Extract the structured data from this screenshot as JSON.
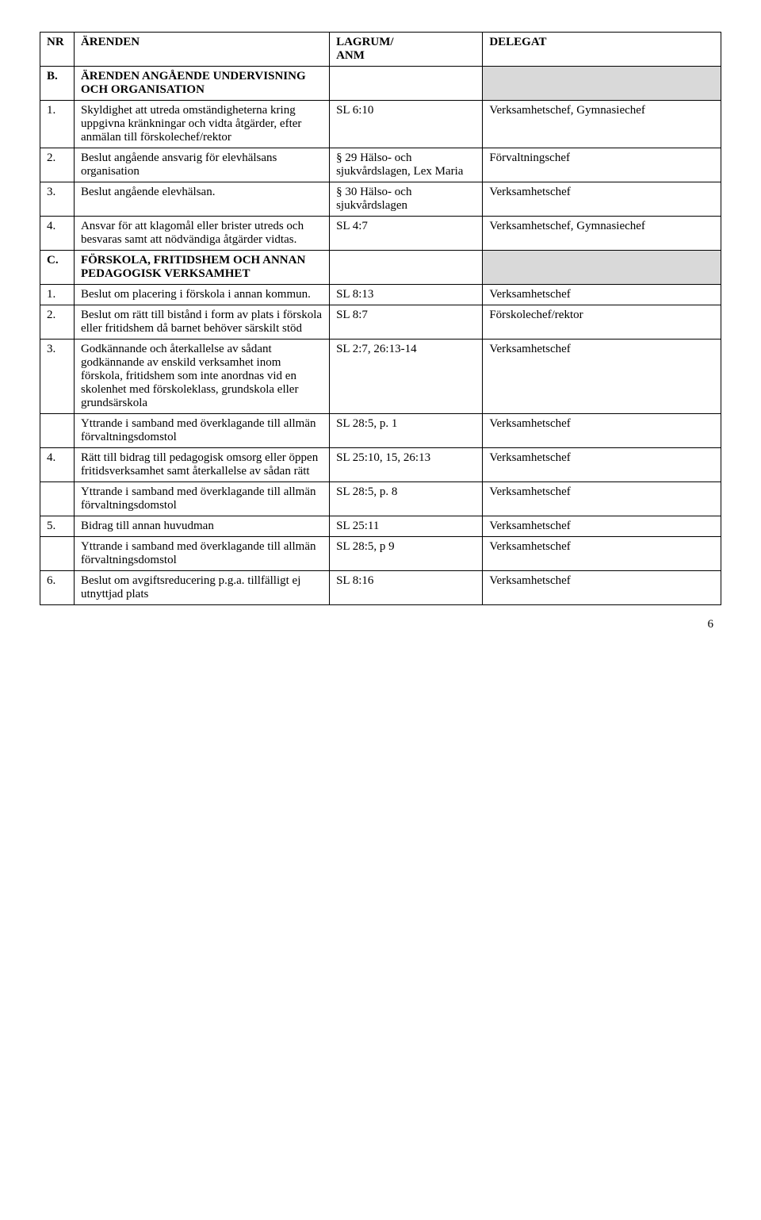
{
  "header": {
    "nr": "NR",
    "arenden": "ÄRENDEN",
    "lagrum": "LAGRUM/\nANM",
    "delegat": "DELEGAT"
  },
  "rows": [
    {
      "nr": "B.",
      "text": "ÄRENDEN ANGÅENDE UNDERVISNING OCH ORGANISATION",
      "lag": "",
      "del": "",
      "shadeDel": true,
      "bold": true
    },
    {
      "nr": "1.",
      "text": "Skyldighet att utreda omständigheterna kring uppgivna kränkningar och vidta åtgärder, efter anmälan till förskolechef/rektor",
      "lag": "SL 6:10",
      "del": "Verksamhetschef, Gymnasiechef"
    },
    {
      "nr": "2.",
      "text": "Beslut angående ansvarig för elevhälsans organisation",
      "lag": "§ 29 Hälso- och sjukvårdslagen, Lex Maria",
      "del": "Förvaltningschef"
    },
    {
      "nr": "3.",
      "text": "Beslut angående elevhälsan.",
      "lag": "§ 30 Hälso- och sjukvårdslagen",
      "del": "Verksamhetschef"
    },
    {
      "nr": "4.",
      "text": "Ansvar för att klagomål eller brister utreds och besvaras samt att nödvändiga åtgärder vidtas.",
      "lag": "SL 4:7",
      "del": "Verksamhetschef, Gymnasiechef"
    },
    {
      "nr": "C.",
      "text": "FÖRSKOLA, FRITIDSHEM OCH ANNAN PEDAGOGISK VERKSAMHET",
      "lag": "",
      "del": "",
      "shadeDel": true,
      "bold": true
    },
    {
      "nr": "1.",
      "text": "Beslut om placering i förskola i annan kommun.",
      "lag": "SL 8:13",
      "del": "Verksamhetschef"
    },
    {
      "nr": "2.",
      "text": "Beslut om rätt till bistånd i form av plats i förskola eller fritidshem då barnet behöver särskilt stöd",
      "lag": "SL 8:7",
      "del": "Förskolechef/rektor"
    },
    {
      "nr": "3.",
      "text": "Godkännande och återkallelse av sådant godkännande av enskild verksamhet inom förskola, fritidshem som inte anordnas vid en skolenhet med förskoleklass, grundskola eller grundsärskola",
      "lag": "SL 2:7, 26:13-14",
      "del": "Verksamhetschef"
    },
    {
      "nr": "",
      "text": "Yttrande i samband med överklagande till allmän förvaltningsdomstol",
      "lag": "SL 28:5, p. 1",
      "del": "Verksamhetschef"
    },
    {
      "nr": "4.",
      "text": "Rätt till bidrag till pedagogisk omsorg eller öppen fritidsverksamhet samt återkallelse av sådan rätt",
      "lag": "SL 25:10, 15, 26:13",
      "del": "Verksamhetschef"
    },
    {
      "nr": "",
      "text": "Yttrande i samband med överklagande till allmän förvaltningsdomstol",
      "lag": "SL 28:5, p. 8",
      "del": "Verksamhetschef"
    },
    {
      "nr": "5.",
      "text": "Bidrag till annan huvudman",
      "lag": "SL 25:11",
      "del": "Verksamhetschef"
    },
    {
      "nr": "",
      "text": "Yttrande i samband med överklagande till allmän förvaltningsdomstol",
      "lag": "SL 28:5, p 9",
      "del": "Verksamhetschef"
    },
    {
      "nr": "6.",
      "text": "Beslut om avgiftsreducering p.g.a. tillfälligt ej utnyttjad plats",
      "lag": "SL 8:16",
      "del": "Verksamhetschef"
    }
  ],
  "pagenum": "6"
}
